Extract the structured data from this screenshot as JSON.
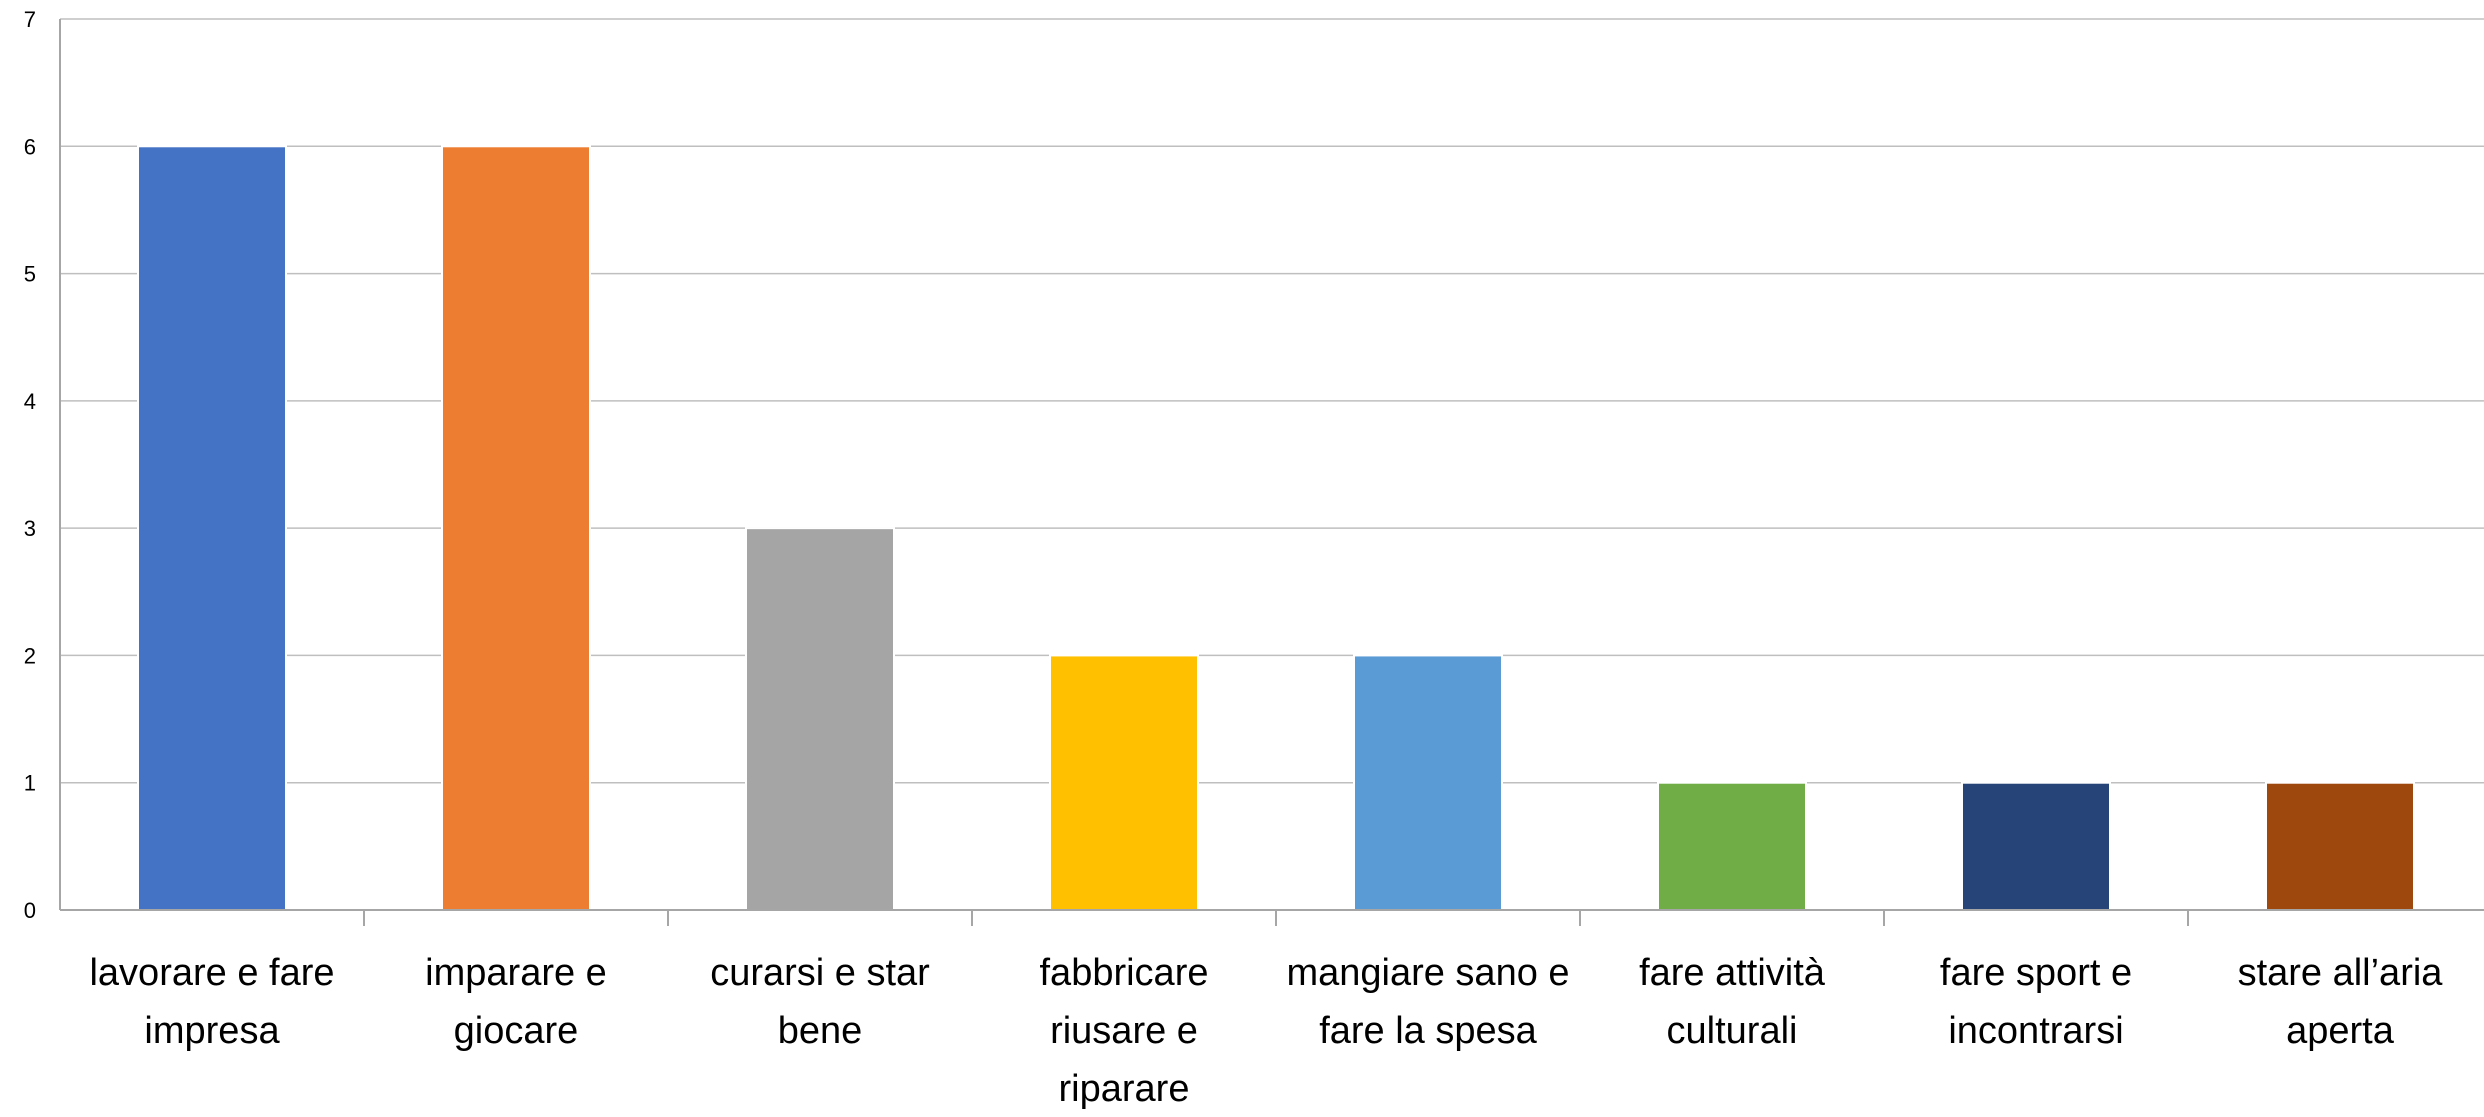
{
  "chart_data": {
    "type": "bar",
    "categories": [
      [
        "lavorare e fare",
        "impresa"
      ],
      [
        "imparare e",
        "giocare"
      ],
      [
        "curarsi e star",
        "bene"
      ],
      [
        "fabbricare",
        "riusare e",
        "riparare"
      ],
      [
        "mangiare sano e",
        "fare la spesa"
      ],
      [
        "fare attività",
        "culturali"
      ],
      [
        "fare sport e",
        "incontrarsi"
      ],
      [
        "stare all’aria",
        "aperta"
      ]
    ],
    "values": [
      6,
      6,
      3,
      2,
      2,
      1,
      1,
      1
    ],
    "colors": [
      "#4472C4",
      "#ED7D31",
      "#A5A5A5",
      "#FFC000",
      "#5B9BD5",
      "#70AD47",
      "#264478",
      "#9E480E"
    ],
    "ylim": [
      0,
      7
    ],
    "yticks": [
      "0",
      "1",
      "2",
      "3",
      "4",
      "5",
      "6",
      "7"
    ],
    "grid": true,
    "gridColor": "#BFBFBF",
    "axisColor": "#A6A6A6",
    "title": "",
    "xlabel": "",
    "ylabel": ""
  }
}
